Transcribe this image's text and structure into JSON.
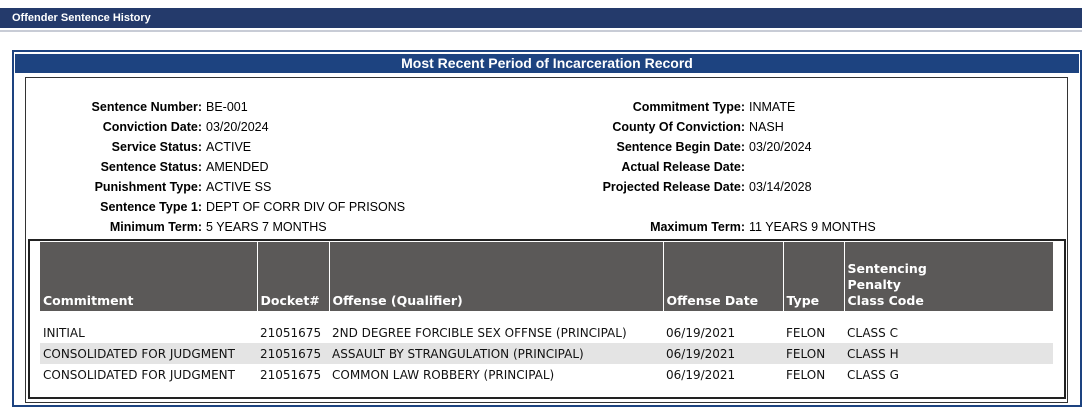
{
  "header": {
    "title": "Offender Sentence History"
  },
  "panel": {
    "title": "Most Recent Period of Incarceration Record",
    "left_fields": [
      {
        "label": "Sentence Number:",
        "value": "BE-001"
      },
      {
        "label": "Conviction Date:",
        "value": "03/20/2024"
      },
      {
        "label": "Service Status:",
        "value": "ACTIVE"
      },
      {
        "label": "Sentence Status:",
        "value": "AMENDED"
      },
      {
        "label": "Punishment Type:",
        "value": "ACTIVE SS"
      },
      {
        "label": "Sentence Type 1:",
        "value": "DEPT OF CORR DIV OF PRISONS"
      },
      {
        "label": "Minimum Term:",
        "value": "5 YEARS 7 MONTHS"
      }
    ],
    "right_fields": [
      {
        "label": "Commitment Type:",
        "value": "INMATE"
      },
      {
        "label": "County Of Conviction:",
        "value": "NASH"
      },
      {
        "label": "Sentence Begin Date:",
        "value": "03/20/2024"
      },
      {
        "label": "Actual Release Date:"
      },
      {
        "label": "Projected Release Date:",
        "value": "03/14/2028"
      },
      null,
      {
        "label": "Maximum Term:",
        "value": "11 YEARS 9 MONTHS"
      }
    ]
  },
  "table": {
    "headers": [
      "Commitment",
      "Docket#",
      "Offense (Qualifier)",
      "Offense Date",
      "Type",
      "Sentencing Penalty Class Code"
    ],
    "rows": [
      [
        "INITIAL",
        "21051675",
        "2ND DEGREE FORCIBLE SEX OFFNSE (PRINCIPAL)",
        "06/19/2021",
        "FELON",
        "CLASS C"
      ],
      [
        "CONSOLIDATED FOR JUDGMENT",
        "21051675",
        "ASSAULT BY STRANGULATION (PRINCIPAL)",
        "06/19/2021",
        "FELON",
        "CLASS H"
      ],
      [
        "CONSOLIDATED FOR JUDGMENT",
        "21051675",
        "COMMON LAW ROBBERY (PRINCIPAL)",
        "06/19/2021",
        "FELON",
        "CLASS G"
      ]
    ]
  }
}
